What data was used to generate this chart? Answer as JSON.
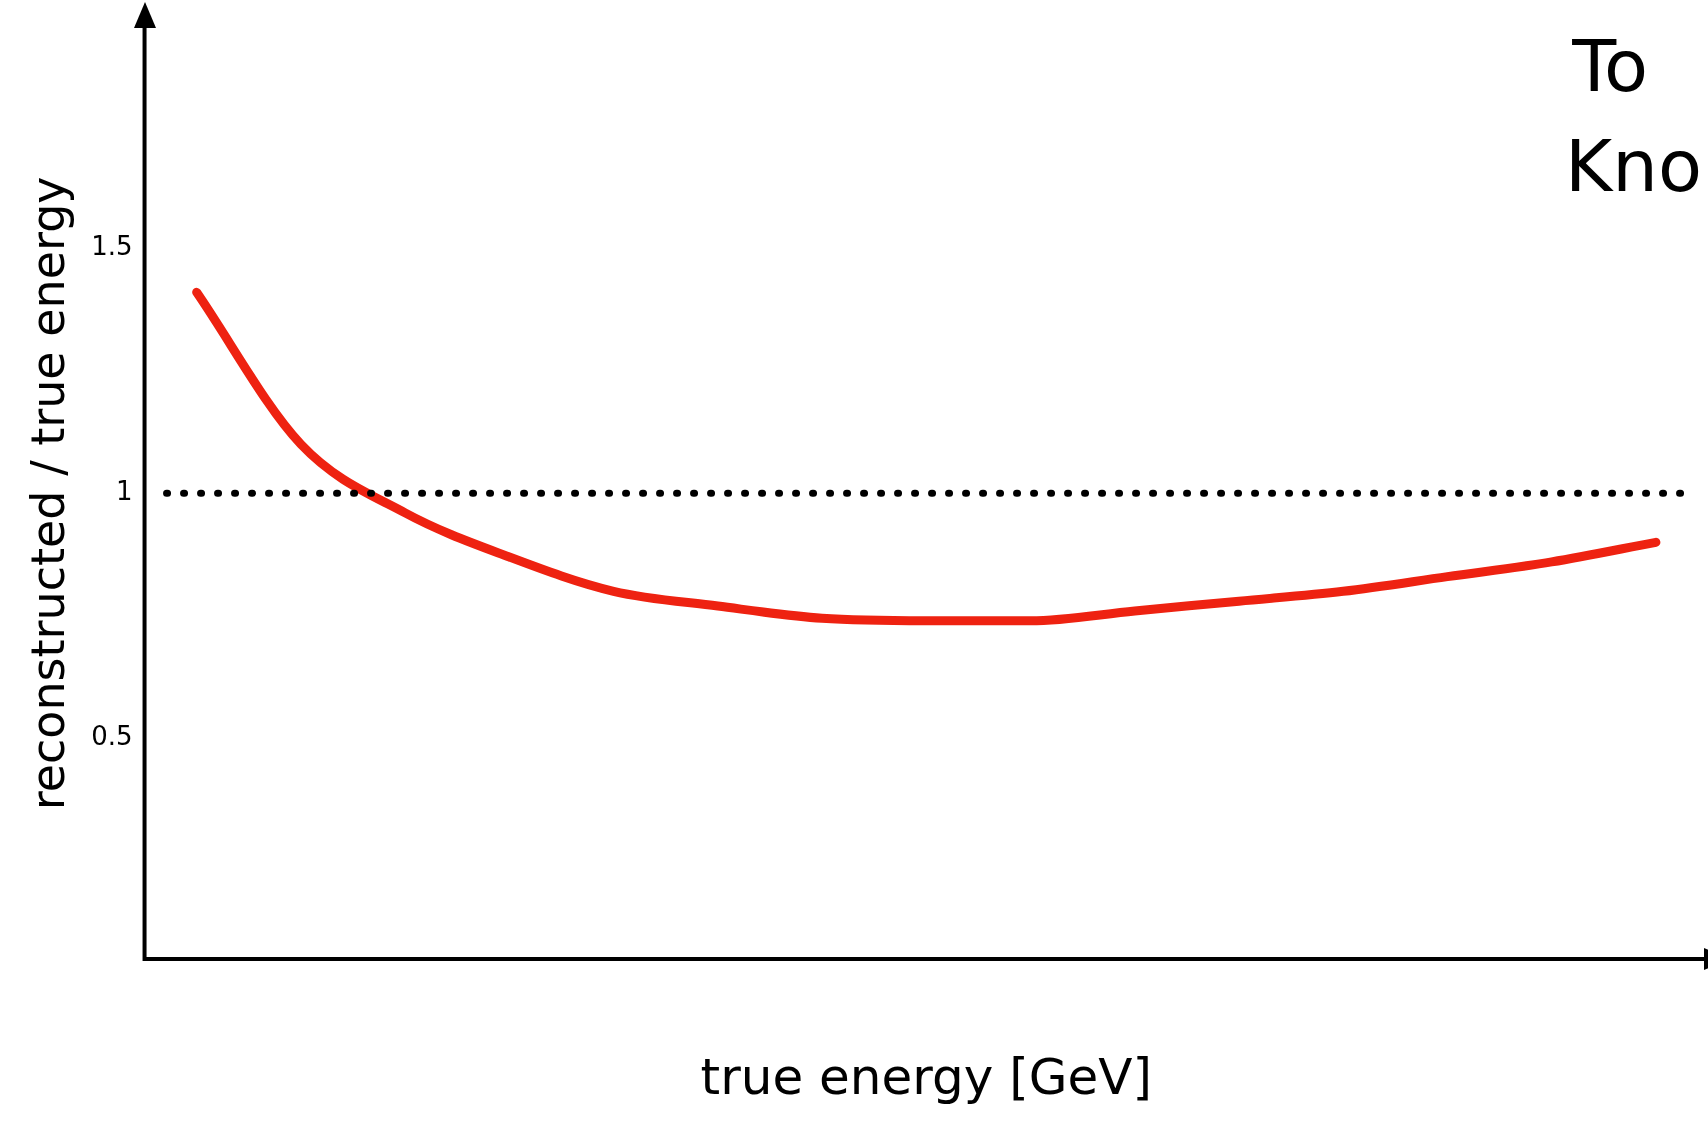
{
  "chart_data": {
    "type": "line",
    "xlabel": "true energy [GeV]",
    "ylabel": "reconstructed / true energy",
    "categories": [
      null,
      null,
      null,
      null,
      null,
      null,
      null,
      null,
      null,
      null,
      null,
      null,
      null,
      null,
      null
    ],
    "series": [
      {
        "color": "#ee2211",
        "values": [
          1.41,
          1.1,
          0.96,
          0.87,
          0.8,
          0.77,
          0.745,
          0.74,
          0.74,
          0.76,
          0.78,
          0.8,
          0.83,
          0.86,
          0.9
        ]
      }
    ],
    "ylim": [
      0.05,
      1.95
    ],
    "yticks": [
      0.5,
      1,
      1.5
    ],
    "grid": false,
    "legend": false,
    "marker": "none",
    "line_style": "solid",
    "ref_lines": [
      {
        "axis": "y",
        "value": 1,
        "color": "#000000",
        "line_style": "dotted"
      }
    ],
    "annotations": [
      "To",
      "Kno"
    ]
  }
}
